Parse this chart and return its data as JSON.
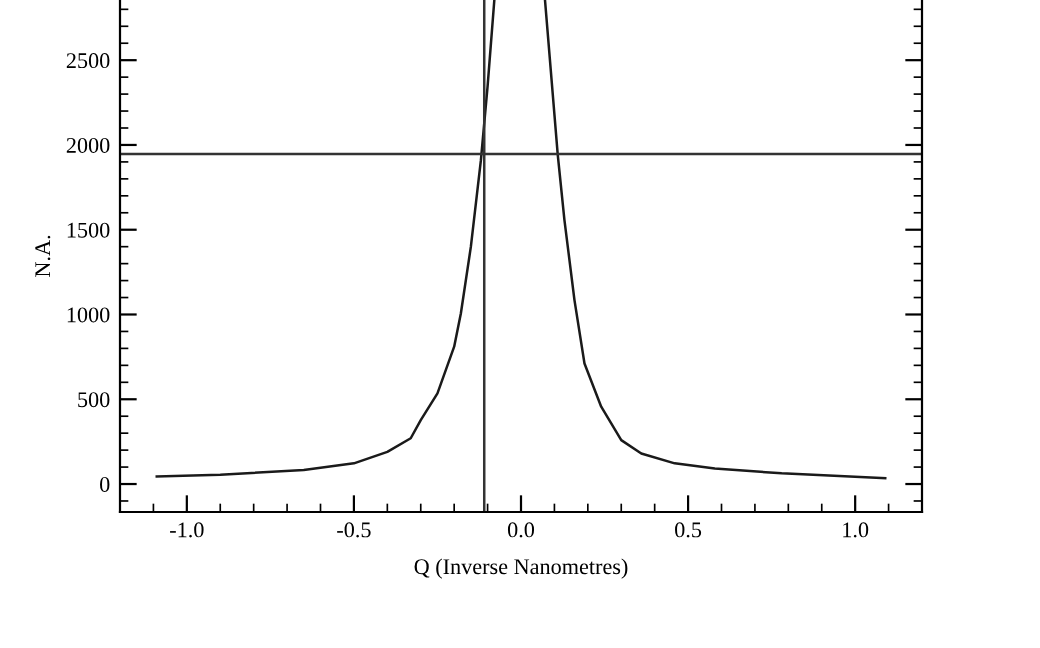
{
  "chart_data": {
    "type": "line",
    "xlabel": "Q (Inverse Nanometres)",
    "ylabel": "N.A.",
    "series": [
      {
        "color": "#1a1a1a",
        "x": [
          -1.09,
          -0.9,
          -0.65,
          -0.5,
          -0.4,
          -0.33,
          -0.3,
          -0.25,
          -0.2,
          -0.18,
          -0.15,
          -0.12,
          -0.1,
          -0.08,
          null,
          0.072,
          0.11,
          0.13,
          0.16,
          0.19,
          0.24,
          0.3,
          0.36,
          0.46,
          0.58,
          0.78,
          1.09
        ],
        "values": [
          45,
          55,
          83,
          122,
          190,
          270,
          377,
          535,
          810,
          1006,
          1400,
          1910,
          2345,
          2850,
          null,
          2850,
          1942,
          1557,
          1085,
          711,
          456,
          259,
          180,
          122,
          91,
          63,
          35
        ]
      }
    ],
    "xlim": [
      -1.2,
      1.2
    ],
    "xticks": [
      {
        "value": -1.0,
        "label": "-1.0"
      },
      {
        "value": -0.5,
        "label": "-0.5"
      },
      {
        "value": 0.0,
        "label": "0.0"
      },
      {
        "value": 0.5,
        "label": "0.5"
      },
      {
        "value": 1.0,
        "label": "1.0"
      }
    ],
    "ylim": [
      -165,
      2855
    ],
    "yticks": [
      0,
      500,
      1000,
      1500,
      2000,
      2500
    ],
    "ref_lines": [
      {
        "axis": "x",
        "value": -0.11,
        "color": "#333333"
      },
      {
        "axis": "y",
        "value": 1946,
        "color": "#333333"
      }
    ],
    "grid": false,
    "legend": false,
    "marker": "none",
    "line_style": "solid"
  }
}
